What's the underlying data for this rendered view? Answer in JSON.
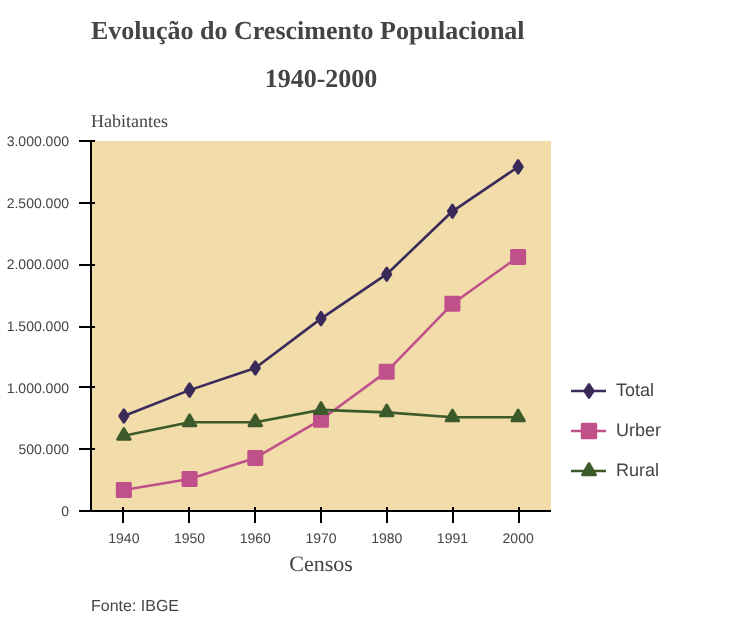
{
  "chart_data": {
    "type": "line",
    "title": "Evolução do Crescimento Populacional",
    "subtitle": "1940-2000",
    "ylabel": "Habitantes",
    "xlabel": "Censos",
    "annotations": [
      "Fonte: IBGE"
    ],
    "categories": [
      "1940",
      "1950",
      "1960",
      "1970",
      "1980",
      "1991",
      "2000"
    ],
    "series": [
      {
        "name": "Total",
        "color": "#3a2a5a",
        "marker": "diamond",
        "values": [
          770000,
          980000,
          1160000,
          1560000,
          1920000,
          2430000,
          2790000
        ]
      },
      {
        "name": "Urber",
        "color": "#c0508a",
        "marker": "square",
        "values": [
          170000,
          260000,
          430000,
          740000,
          1130000,
          1680000,
          2060000
        ]
      },
      {
        "name": "Rural",
        "color": "#3d5a2a",
        "marker": "triangle",
        "values": [
          610000,
          720000,
          720000,
          820000,
          800000,
          760000,
          760000
        ]
      }
    ],
    "ylim": [
      0,
      3000000
    ],
    "yticks": [
      {
        "value": 0,
        "label": "0"
      },
      {
        "value": 500000,
        "label": "500.000"
      },
      {
        "value": 1000000,
        "label": "1.000.000"
      },
      {
        "value": 1500000,
        "label": "1.500.000"
      },
      {
        "value": 2000000,
        "label": "2.000.000"
      },
      {
        "value": 2500000,
        "label": "2.500.000"
      },
      {
        "value": 3000000,
        "label": "3.000.000"
      }
    ],
    "grid": false,
    "legend": "right",
    "line_style": "solid"
  }
}
